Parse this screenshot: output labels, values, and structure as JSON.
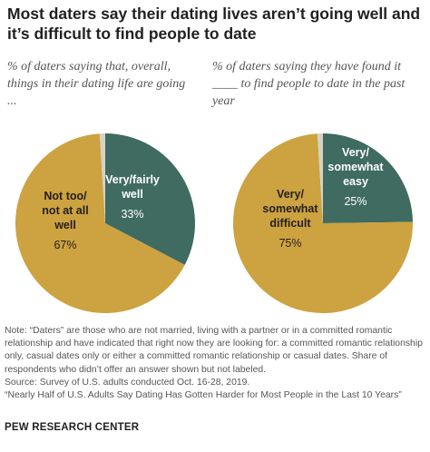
{
  "title": "Most daters say their dating lives aren’t going well and it’s difficult to find people to date",
  "chart_data": [
    {
      "type": "pie",
      "subtitle": "% of daters saying that, overall, things in their dating life are going ...",
      "slices": [
        {
          "label_lines": [
            "Very/fairly",
            "well"
          ],
          "value": 33,
          "value_label": "33%",
          "color": "#3f6b61",
          "text_color": "#ffffff"
        },
        {
          "label_lines": [
            "Not too/",
            "not at all",
            "well"
          ],
          "value": 67,
          "value_label": "67%",
          "color": "#cda240",
          "text_color": "#231f20"
        }
      ],
      "unlabeled_share": 1,
      "unlabeled_color": "#d6d2c4"
    },
    {
      "type": "pie",
      "subtitle": "% of daters saying they have found it ____ to find people to date in the past year",
      "slices": [
        {
          "label_lines": [
            "Very/",
            "somewhat",
            "easy"
          ],
          "value": 25,
          "value_label": "25%",
          "color": "#3f6b61",
          "text_color": "#ffffff"
        },
        {
          "label_lines": [
            "Very/",
            "somewhat",
            "difficult"
          ],
          "value": 75,
          "value_label": "75%",
          "color": "#cda240",
          "text_color": "#231f20"
        }
      ],
      "unlabeled_share": 1,
      "unlabeled_color": "#d6d2c4"
    }
  ],
  "notes": [
    "Note: “Daters” are those who are not married, living with a partner or in a committed romantic relationship and have indicated that right now they are looking for: a committed romantic relationship only, casual dates only or either a committed romantic relationship or casual dates. Share of respondents who didn’t offer an answer shown but not labeled.",
    "Source: Survey of U.S. adults conducted Oct. 16-28, 2019.",
    "“Nearly Half of U.S. Adults Say Dating Has Gotten Harder for Most People in the Last 10 Years”"
  ],
  "footer": "PEW RESEARCH CENTER"
}
